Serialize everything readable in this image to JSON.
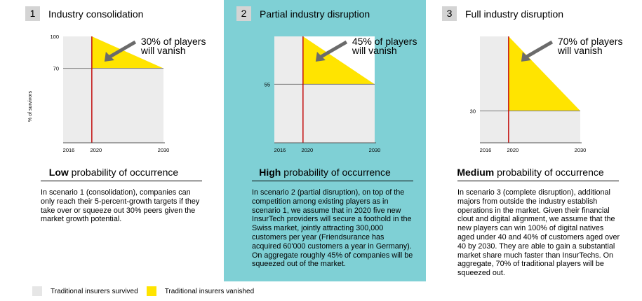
{
  "chart_data": [
    {
      "type": "area",
      "number": "1",
      "title": "Industry consolidation",
      "ylabel": "% of survivors",
      "x_ticks": [
        "2016",
        "2020",
        "2030"
      ],
      "ylim": [
        0,
        100
      ],
      "y_ticks": [
        100,
        70
      ],
      "marker_year": 2020,
      "survived_end": 70,
      "vanished_share": 30,
      "annotation": [
        "30% of players",
        "will vanish"
      ],
      "probability_bold": "Low",
      "probability_rest": " probability of occurrence",
      "description": "In scenario 1 (consolidation), companies can only reach their 5-percent-growth targets if they take over or squeeze out 30% peers given the market growth potential.",
      "highlight": false
    },
    {
      "type": "area",
      "number": "2",
      "title": "Partial industry disruption",
      "ylabel": "",
      "x_ticks": [
        "2016",
        "2020",
        "2030"
      ],
      "ylim": [
        0,
        100
      ],
      "y_ticks": [
        55
      ],
      "marker_year": 2020,
      "survived_end": 55,
      "vanished_share": 45,
      "annotation": [
        "45% of players",
        "will vanish"
      ],
      "probability_bold": "High",
      "probability_rest": " probability of occurrence",
      "description": "In scenario 2 (partial disruption), on top of the competition among existing players as in scenario 1, we assume that in 2020 five new InsurTech providers will secure a foothold in the Swiss market,  jointly attracting 300,000 customers per year (Friendsurance has acquired 60'000 customers a year in Germany). On aggregate roughly 45% of companies will be squeezed out of the market.",
      "highlight": true
    },
    {
      "type": "area",
      "number": "3",
      "title": "Full industry disruption",
      "ylabel": "",
      "x_ticks": [
        "2016",
        "2020",
        "2030"
      ],
      "ylim": [
        0,
        100
      ],
      "y_ticks": [
        30
      ],
      "marker_year": 2020,
      "survived_end": 30,
      "vanished_share": 70,
      "annotation": [
        "70% of players",
        "will vanish"
      ],
      "probability_bold": "Medium",
      "probability_rest": " probability of occurrence",
      "description": "In scenario 3 (complete disruption), additional majors from outside the industry establish operations in the market. Given their financial clout and digital alignment, we assume that the new players can win 100% of digital natives aged under 40 and 40% of customers aged over 40 by 2030. They are able to gain a substantial market share much faster than InsurTechs. On aggregate, 70% of traditional players will be squeezed out.",
      "highlight": false
    }
  ],
  "legend": {
    "survived": "Traditional insurers survived",
    "vanished": "Traditional insurers vanished"
  },
  "colors": {
    "survived": "#ececec",
    "vanished": "#ffe400",
    "marker": "#c00000",
    "arrow": "#6b6b6b",
    "highlight_panel": "#7fd0d5"
  }
}
